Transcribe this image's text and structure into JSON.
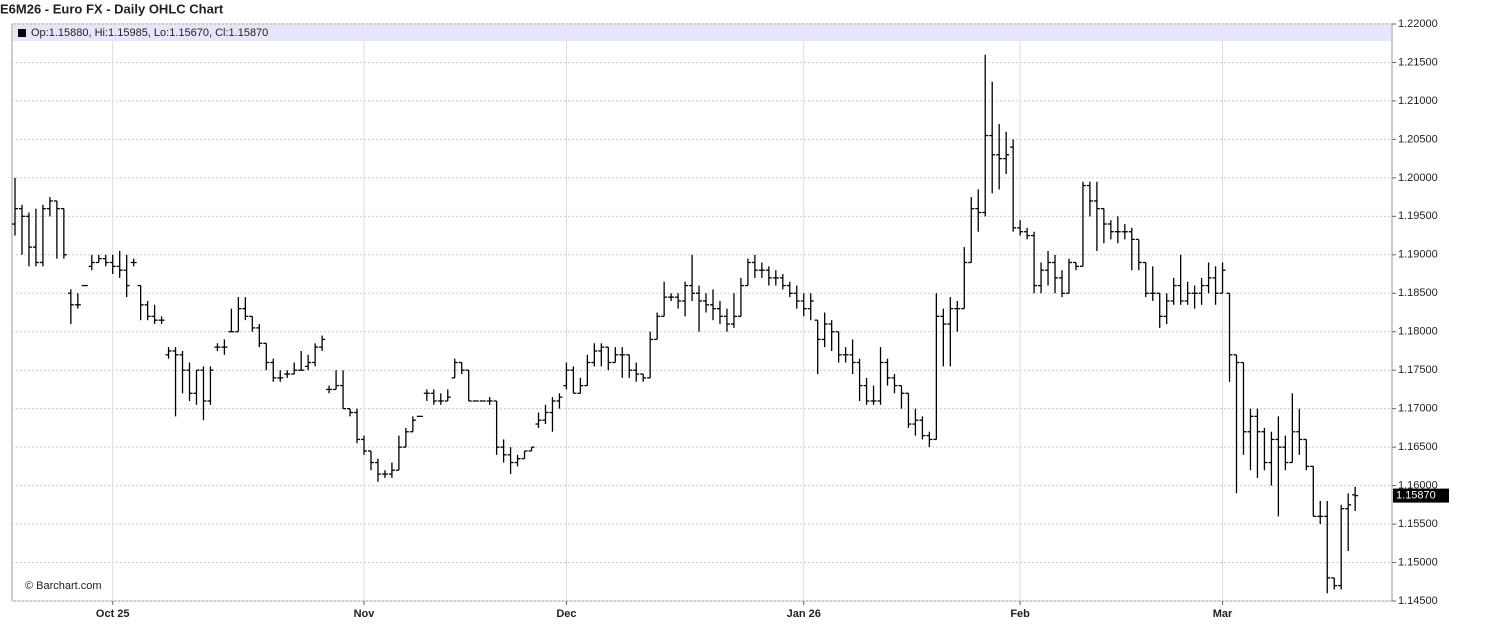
{
  "chart_data": {
    "type": "ohlc",
    "title": "E6M26 - Euro FX - Daily OHLC Chart",
    "header": "Op:1.15880, Hi:1.15985, Lo:1.15670, Cl:1.15870",
    "credit": "© Barchart.com",
    "color": "#000000",
    "grid": true,
    "last_price": {
      "value": 1.1587,
      "label": "1.15870"
    },
    "ylim": [
      1.145,
      1.22
    ],
    "yticks": [
      {
        "value": 1.145,
        "label": "1.14500"
      },
      {
        "value": 1.15,
        "label": "1.15000"
      },
      {
        "value": 1.155,
        "label": "1.15500"
      },
      {
        "value": 1.16,
        "label": "1.16000"
      },
      {
        "value": 1.165,
        "label": "1.16500"
      },
      {
        "value": 1.17,
        "label": "1.17000"
      },
      {
        "value": 1.175,
        "label": "1.17500"
      },
      {
        "value": 1.18,
        "label": "1.18000"
      },
      {
        "value": 1.185,
        "label": "1.18500"
      },
      {
        "value": 1.19,
        "label": "1.19000"
      },
      {
        "value": 1.195,
        "label": "1.19500"
      },
      {
        "value": 1.2,
        "label": "1.20000"
      },
      {
        "value": 1.205,
        "label": "1.20500"
      },
      {
        "value": 1.21,
        "label": "1.21000"
      },
      {
        "value": 1.215,
        "label": "1.21500"
      },
      {
        "value": 1.22,
        "label": "1.22000"
      }
    ],
    "categories": [
      null,
      null,
      null,
      null,
      null,
      null,
      null,
      null,
      null,
      null,
      null,
      null,
      null,
      null,
      "Oct 25",
      null,
      null,
      null,
      null,
      null,
      null,
      null,
      null,
      null,
      null,
      null,
      null,
      null,
      null,
      null,
      null,
      null,
      null,
      null,
      null,
      null,
      null,
      null,
      null,
      null,
      null,
      null,
      null,
      null,
      null,
      null,
      null,
      null,
      null,
      null,
      "Nov",
      null,
      null,
      null,
      null,
      null,
      null,
      null,
      null,
      null,
      null,
      null,
      null,
      null,
      null,
      null,
      null,
      null,
      null,
      null,
      null,
      null,
      null,
      null,
      null,
      null,
      null,
      null,
      null,
      "Dec",
      null,
      null,
      null,
      null,
      null,
      null,
      null,
      null,
      null,
      null,
      null,
      null,
      null,
      null,
      null,
      null,
      null,
      null,
      null,
      null,
      null,
      null,
      null,
      null,
      null,
      null,
      null,
      null,
      null,
      null,
      null,
      null,
      null,
      "Jan 26",
      null,
      null,
      null,
      null,
      null,
      null,
      null,
      null,
      null,
      null,
      null,
      null,
      null,
      null,
      null,
      null,
      null,
      null,
      null,
      null,
      null,
      null,
      null,
      null,
      null,
      null,
      null,
      null,
      null,
      null,
      "Feb",
      null,
      null,
      null,
      null,
      null,
      null,
      null,
      null,
      null,
      null,
      null,
      null,
      null,
      null,
      null,
      null,
      null,
      null,
      null,
      null,
      null,
      null,
      null,
      null,
      null,
      null,
      null,
      null,
      "Mar",
      null,
      null,
      null,
      null,
      null,
      null,
      null,
      null,
      null,
      null,
      null,
      null,
      null,
      null,
      null,
      null,
      null,
      null,
      null,
      null,
      null,
      null,
      null,
      null
    ],
    "ohlc": [
      [
        1.194,
        1.2,
        1.1925,
        1.196
      ],
      [
        1.196,
        1.1965,
        1.19,
        1.195
      ],
      [
        1.195,
        1.1955,
        1.1885,
        1.191
      ],
      [
        1.191,
        1.196,
        1.1885,
        1.189
      ],
      [
        1.189,
        1.1965,
        1.1885,
        1.196
      ],
      [
        1.196,
        1.1975,
        1.195,
        1.197
      ],
      [
        1.197,
        1.197,
        1.1895,
        1.196
      ],
      [
        1.196,
        1.196,
        1.1895,
        1.19
      ],
      [
        1.185,
        1.1855,
        1.181,
        1.1835
      ],
      [
        1.1835,
        1.185,
        1.183,
        1.1835
      ],
      [
        1.186,
        1.186,
        1.186,
        1.186
      ],
      [
        1.1885,
        1.19,
        1.188,
        1.189
      ],
      [
        1.189,
        1.19,
        1.189,
        1.1895
      ],
      [
        1.1895,
        1.19,
        1.1885,
        1.189
      ],
      [
        1.189,
        1.19,
        1.1875,
        1.1885
      ],
      [
        1.1885,
        1.1905,
        1.187,
        1.188
      ],
      [
        1.188,
        1.19,
        1.1845,
        1.186
      ],
      [
        1.189,
        1.1895,
        1.1885,
        1.189
      ],
      [
        1.186,
        1.186,
        1.1815,
        1.1835
      ],
      [
        1.1835,
        1.184,
        1.1815,
        1.182
      ],
      [
        1.182,
        1.1835,
        1.181,
        1.1815
      ],
      [
        1.1815,
        1.182,
        1.181,
        1.1815
      ],
      [
        1.177,
        1.178,
        1.1765,
        1.1775
      ],
      [
        1.1775,
        1.178,
        1.169,
        1.177
      ],
      [
        1.177,
        1.1775,
        1.172,
        1.175
      ],
      [
        1.175,
        1.176,
        1.171,
        1.172
      ],
      [
        1.172,
        1.175,
        1.1705,
        1.175
      ],
      [
        1.175,
        1.1755,
        1.1685,
        1.171
      ],
      [
        1.171,
        1.1755,
        1.1705,
        1.175
      ],
      [
        1.178,
        1.1785,
        1.1775,
        1.178
      ],
      [
        1.178,
        1.179,
        1.177,
        1.178
      ],
      [
        1.18,
        1.183,
        1.18,
        1.18
      ],
      [
        1.18,
        1.1845,
        1.18,
        1.183
      ],
      [
        1.183,
        1.1845,
        1.1815,
        1.182
      ],
      [
        1.182,
        1.182,
        1.18,
        1.1805
      ],
      [
        1.1805,
        1.181,
        1.178,
        1.1785
      ],
      [
        1.1785,
        1.1785,
        1.175,
        1.176
      ],
      [
        1.176,
        1.1765,
        1.1735,
        1.174
      ],
      [
        1.174,
        1.175,
        1.1735,
        1.174
      ],
      [
        1.1745,
        1.175,
        1.174,
        1.1745
      ],
      [
        1.1745,
        1.176,
        1.1745,
        1.175
      ],
      [
        1.175,
        1.1775,
        1.175,
        1.175
      ],
      [
        1.1755,
        1.177,
        1.175,
        1.176
      ],
      [
        1.176,
        1.1785,
        1.1755,
        1.178
      ],
      [
        1.178,
        1.1795,
        1.1775,
        1.179
      ],
      [
        1.1725,
        1.173,
        1.172,
        1.1725
      ],
      [
        1.1725,
        1.175,
        1.1725,
        1.173
      ],
      [
        1.173,
        1.175,
        1.17,
        1.17
      ],
      [
        1.17,
        1.17,
        1.169,
        1.1695
      ],
      [
        1.1695,
        1.17,
        1.1655,
        1.166
      ],
      [
        1.166,
        1.1665,
        1.164,
        1.1645
      ],
      [
        1.1645,
        1.1645,
        1.162,
        1.163
      ],
      [
        1.163,
        1.1635,
        1.1605,
        1.1615
      ],
      [
        1.1615,
        1.162,
        1.161,
        1.1615
      ],
      [
        1.1615,
        1.163,
        1.161,
        1.162
      ],
      [
        1.162,
        1.1665,
        1.162,
        1.165
      ],
      [
        1.165,
        1.1675,
        1.165,
        1.167
      ],
      [
        1.167,
        1.169,
        1.167,
        1.1685
      ],
      [
        1.169,
        1.169,
        1.169,
        1.169
      ],
      [
        1.172,
        1.1725,
        1.171,
        1.172
      ],
      [
        1.172,
        1.1725,
        1.1705,
        1.171
      ],
      [
        1.171,
        1.172,
        1.1705,
        1.171
      ],
      [
        1.171,
        1.1725,
        1.171,
        1.1715
      ],
      [
        1.174,
        1.1765,
        1.174,
        1.176
      ],
      [
        1.176,
        1.176,
        1.1745,
        1.175
      ],
      [
        1.175,
        1.175,
        1.171,
        1.171
      ],
      [
        1.171,
        1.171,
        1.171,
        1.171
      ],
      [
        1.171,
        1.171,
        1.171,
        1.171
      ],
      [
        1.171,
        1.1715,
        1.1705,
        1.171
      ],
      [
        1.171,
        1.171,
        1.164,
        1.165
      ],
      [
        1.165,
        1.166,
        1.163,
        1.164
      ],
      [
        1.164,
        1.165,
        1.1615,
        1.163
      ],
      [
        1.163,
        1.164,
        1.1625,
        1.1635
      ],
      [
        1.1635,
        1.1645,
        1.1635,
        1.1645
      ],
      [
        1.1645,
        1.165,
        1.1645,
        1.165
      ],
      [
        1.168,
        1.1695,
        1.1675,
        1.1685
      ],
      [
        1.1685,
        1.1705,
        1.168,
        1.1695
      ],
      [
        1.1695,
        1.1715,
        1.167,
        1.171
      ],
      [
        1.171,
        1.172,
        1.17,
        1.1715
      ],
      [
        1.173,
        1.176,
        1.1725,
        1.175
      ],
      [
        1.175,
        1.1755,
        1.172,
        1.172
      ],
      [
        1.172,
        1.174,
        1.172,
        1.173
      ],
      [
        1.173,
        1.177,
        1.173,
        1.176
      ],
      [
        1.176,
        1.1785,
        1.1755,
        1.1775
      ],
      [
        1.1775,
        1.1785,
        1.1755,
        1.178
      ],
      [
        1.178,
        1.178,
        1.175,
        1.176
      ],
      [
        1.176,
        1.178,
        1.176,
        1.177
      ],
      [
        1.177,
        1.178,
        1.174,
        1.177
      ],
      [
        1.177,
        1.177,
        1.174,
        1.175
      ],
      [
        1.175,
        1.176,
        1.1735,
        1.1745
      ],
      [
        1.1745,
        1.1745,
        1.1735,
        1.174
      ],
      [
        1.174,
        1.18,
        1.174,
        1.179
      ],
      [
        1.179,
        1.1825,
        1.179,
        1.182
      ],
      [
        1.182,
        1.1865,
        1.182,
        1.1845
      ],
      [
        1.1845,
        1.185,
        1.184,
        1.1845
      ],
      [
        1.1845,
        1.185,
        1.183,
        1.184
      ],
      [
        1.184,
        1.1865,
        1.182,
        1.186
      ],
      [
        1.186,
        1.19,
        1.184,
        1.185
      ],
      [
        1.185,
        1.186,
        1.18,
        1.184
      ],
      [
        1.184,
        1.185,
        1.1825,
        1.1835
      ],
      [
        1.1835,
        1.1855,
        1.1815,
        1.183
      ],
      [
        1.183,
        1.184,
        1.181,
        1.182
      ],
      [
        1.182,
        1.183,
        1.18,
        1.181
      ],
      [
        1.181,
        1.185,
        1.1805,
        1.182
      ],
      [
        1.182,
        1.187,
        1.182,
        1.186
      ],
      [
        1.186,
        1.1895,
        1.186,
        1.189
      ],
      [
        1.189,
        1.19,
        1.187,
        1.188
      ],
      [
        1.188,
        1.189,
        1.187,
        1.188
      ],
      [
        1.188,
        1.1885,
        1.186,
        1.187
      ],
      [
        1.187,
        1.188,
        1.186,
        1.187
      ],
      [
        1.187,
        1.1875,
        1.1855,
        1.186
      ],
      [
        1.186,
        1.1865,
        1.1845,
        1.185
      ],
      [
        1.185,
        1.186,
        1.183,
        1.184
      ],
      [
        1.184,
        1.185,
        1.182,
        1.183
      ],
      [
        1.183,
        1.185,
        1.1815,
        1.184
      ],
      [
        1.1815,
        1.1815,
        1.1745,
        1.179
      ],
      [
        1.179,
        1.1825,
        1.178,
        1.181
      ],
      [
        1.181,
        1.1815,
        1.1775,
        1.18
      ],
      [
        1.18,
        1.18,
        1.176,
        1.177
      ],
      [
        1.177,
        1.178,
        1.176,
        1.177
      ],
      [
        1.177,
        1.179,
        1.1745,
        1.176
      ],
      [
        1.176,
        1.1765,
        1.171,
        1.173
      ],
      [
        1.173,
        1.174,
        1.1705,
        1.171
      ],
      [
        1.171,
        1.173,
        1.1705,
        1.171
      ],
      [
        1.171,
        1.178,
        1.1705,
        1.176
      ],
      [
        1.176,
        1.1765,
        1.173,
        1.174
      ],
      [
        1.174,
        1.1745,
        1.172,
        1.173
      ],
      [
        1.173,
        1.173,
        1.17,
        1.172
      ],
      [
        1.172,
        1.172,
        1.1675,
        1.168
      ],
      [
        1.168,
        1.17,
        1.1665,
        1.1685
      ],
      [
        1.1685,
        1.169,
        1.166,
        1.1665
      ],
      [
        1.1665,
        1.167,
        1.165,
        1.166
      ],
      [
        1.166,
        1.185,
        1.166,
        1.182
      ],
      [
        1.182,
        1.183,
        1.1755,
        1.181
      ],
      [
        1.181,
        1.1845,
        1.1755,
        1.183
      ],
      [
        1.183,
        1.184,
        1.18,
        1.183
      ],
      [
        1.183,
        1.191,
        1.183,
        1.189
      ],
      [
        1.189,
        1.1975,
        1.189,
        1.196
      ],
      [
        1.196,
        1.1985,
        1.193,
        1.1955
      ],
      [
        1.1955,
        1.216,
        1.195,
        1.2055
      ],
      [
        1.2055,
        1.2125,
        1.198,
        1.203
      ],
      [
        1.203,
        1.207,
        1.1985,
        1.2025
      ],
      [
        1.2025,
        1.206,
        1.2005,
        1.203
      ],
      [
        1.204,
        1.205,
        1.193,
        1.1935
      ],
      [
        1.1935,
        1.1945,
        1.1925,
        1.193
      ],
      [
        1.193,
        1.1935,
        1.192,
        1.1925
      ],
      [
        1.1925,
        1.193,
        1.185,
        1.186
      ],
      [
        1.186,
        1.189,
        1.185,
        1.188
      ],
      [
        1.188,
        1.1905,
        1.186,
        1.189
      ],
      [
        1.189,
        1.19,
        1.185,
        1.187
      ],
      [
        1.187,
        1.188,
        1.1845,
        1.185
      ],
      [
        1.185,
        1.1895,
        1.185,
        1.189
      ],
      [
        1.189,
        1.189,
        1.188,
        1.1885
      ],
      [
        1.1885,
        1.1995,
        1.1885,
        1.199
      ],
      [
        1.199,
        1.1995,
        1.195,
        1.197
      ],
      [
        1.197,
        1.1995,
        1.1905,
        1.196
      ],
      [
        1.196,
        1.196,
        1.1915,
        1.194
      ],
      [
        1.194,
        1.1945,
        1.192,
        1.193
      ],
      [
        1.193,
        1.195,
        1.1915,
        1.193
      ],
      [
        1.193,
        1.194,
        1.192,
        1.193
      ],
      [
        1.193,
        1.1935,
        1.188,
        1.192
      ],
      [
        1.192,
        1.192,
        1.188,
        1.189
      ],
      [
        1.189,
        1.189,
        1.1845,
        1.185
      ],
      [
        1.185,
        1.1885,
        1.184,
        1.185
      ],
      [
        1.185,
        1.185,
        1.1805,
        1.182
      ],
      [
        1.182,
        1.185,
        1.181,
        1.184
      ],
      [
        1.184,
        1.187,
        1.1835,
        1.186
      ],
      [
        1.186,
        1.19,
        1.1835,
        1.184
      ],
      [
        1.184,
        1.1865,
        1.1835,
        1.185
      ],
      [
        1.185,
        1.186,
        1.183,
        1.185
      ],
      [
        1.185,
        1.187,
        1.1835,
        1.186
      ],
      [
        1.186,
        1.189,
        1.185,
        1.187
      ],
      [
        1.187,
        1.1885,
        1.1835,
        1.185
      ],
      [
        1.185,
        1.189,
        1.185,
        1.188
      ],
      [
        1.185,
        1.185,
        1.1735,
        1.177
      ],
      [
        1.177,
        1.177,
        1.159,
        1.176
      ],
      [
        1.176,
        1.176,
        1.164,
        1.167
      ],
      [
        1.167,
        1.17,
        1.162,
        1.169
      ],
      [
        1.169,
        1.17,
        1.161,
        1.167
      ],
      [
        1.167,
        1.1675,
        1.162,
        1.163
      ],
      [
        1.163,
        1.167,
        1.16,
        1.166
      ],
      [
        1.166,
        1.169,
        1.156,
        1.165
      ],
      [
        1.165,
        1.1665,
        1.162,
        1.163
      ],
      [
        1.163,
        1.172,
        1.163,
        1.167
      ],
      [
        1.167,
        1.17,
        1.164,
        1.166
      ],
      [
        1.166,
        1.166,
        1.162,
        1.1625
      ],
      [
        1.1625,
        1.1625,
        1.156,
        1.156
      ],
      [
        1.156,
        1.158,
        1.155,
        1.156
      ],
      [
        1.156,
        1.158,
        1.146,
        1.148
      ],
      [
        1.148,
        1.148,
        1.1465,
        1.147
      ],
      [
        1.147,
        1.1575,
        1.1465,
        1.157
      ],
      [
        1.157,
        1.159,
        1.1515,
        1.1575
      ],
      [
        1.1588,
        1.15985,
        1.1567,
        1.1587
      ],
      null,
      null,
      null,
      null,
      null
    ]
  }
}
